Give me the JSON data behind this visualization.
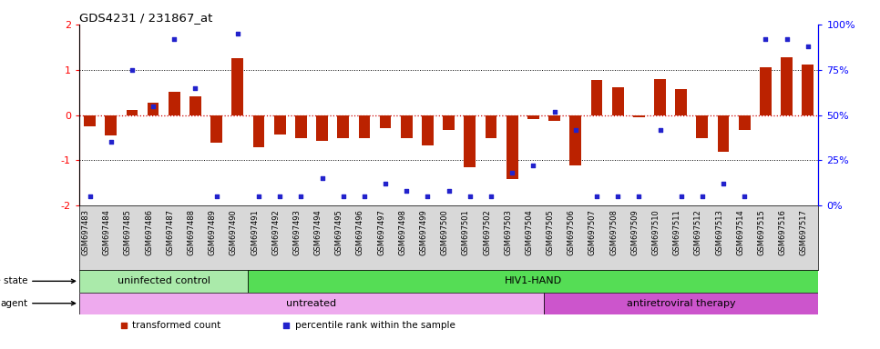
{
  "title": "GDS4231 / 231867_at",
  "samples": [
    "GSM697483",
    "GSM697484",
    "GSM697485",
    "GSM697486",
    "GSM697487",
    "GSM697488",
    "GSM697489",
    "GSM697490",
    "GSM697491",
    "GSM697492",
    "GSM697493",
    "GSM697494",
    "GSM697495",
    "GSM697496",
    "GSM697497",
    "GSM697498",
    "GSM697499",
    "GSM697500",
    "GSM697501",
    "GSM697502",
    "GSM697503",
    "GSM697504",
    "GSM697505",
    "GSM697506",
    "GSM697507",
    "GSM697508",
    "GSM697509",
    "GSM697510",
    "GSM697511",
    "GSM697512",
    "GSM697513",
    "GSM697514",
    "GSM697515",
    "GSM697516",
    "GSM697517"
  ],
  "transformed_count": [
    -0.25,
    -0.45,
    0.12,
    0.28,
    0.52,
    0.42,
    -0.62,
    1.25,
    -0.72,
    -0.42,
    -0.52,
    -0.58,
    -0.52,
    -0.52,
    -0.28,
    -0.52,
    -0.68,
    -0.32,
    -1.15,
    -0.52,
    -1.42,
    -0.08,
    -0.12,
    -1.12,
    0.78,
    0.62,
    -0.04,
    0.8,
    0.58,
    -0.52,
    -0.82,
    -0.32,
    1.05,
    1.28,
    1.12
  ],
  "percentile_rank_pct": [
    5,
    35,
    75,
    55,
    92,
    65,
    5,
    95,
    5,
    5,
    5,
    15,
    5,
    5,
    12,
    8,
    5,
    8,
    5,
    5,
    18,
    22,
    52,
    42,
    5,
    5,
    5,
    42,
    5,
    5,
    12,
    5,
    92,
    92,
    88
  ],
  "ylim": [
    -2,
    2
  ],
  "yticks_left": [
    -2,
    -1,
    0,
    1,
    2
  ],
  "yticks_right": [
    0,
    25,
    50,
    75,
    100
  ],
  "ytick_labels_right": [
    "0%",
    "25%",
    "50%",
    "75%",
    "100%"
  ],
  "hline_values": [
    -1,
    0,
    1
  ],
  "bar_color": "#bb2200",
  "dot_color": "#2222cc",
  "xticklabel_bg": "#d8d8d8",
  "disease_state_groups": [
    {
      "label": "uninfected control",
      "start": 0,
      "end": 8,
      "color": "#aaeaaa"
    },
    {
      "label": "HIV1-HAND",
      "start": 8,
      "end": 35,
      "color": "#55dd55"
    }
  ],
  "agent_groups": [
    {
      "label": "untreated",
      "start": 0,
      "end": 22,
      "color": "#eeaaee"
    },
    {
      "label": "antiretroviral therapy",
      "start": 22,
      "end": 35,
      "color": "#cc55cc"
    }
  ],
  "legend_items": [
    {
      "color": "#bb2200",
      "label": "transformed count",
      "marker": "s"
    },
    {
      "color": "#2222cc",
      "label": "percentile rank within the sample",
      "marker": "s"
    }
  ]
}
